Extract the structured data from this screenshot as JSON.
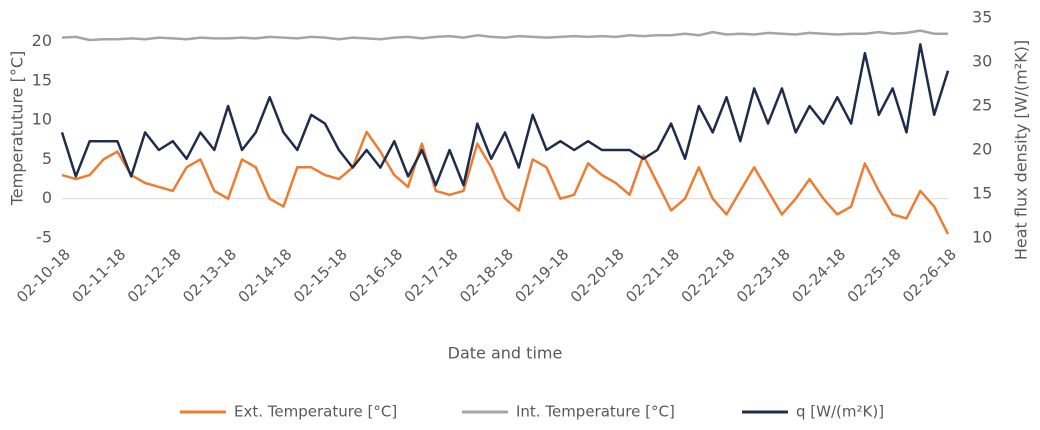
{
  "chart_data": {
    "type": "line",
    "y_label": "Temperatuture [°C]",
    "y2_label": "Heat flux density [W/(m²K)]",
    "x_label": "Date and time",
    "categories": [
      "02-10-18",
      null,
      null,
      null,
      "02-11-18",
      null,
      null,
      null,
      "02-12-18",
      null,
      null,
      null,
      "02-13-18",
      null,
      null,
      null,
      "02-14-18",
      null,
      null,
      null,
      "02-15-18",
      null,
      null,
      null,
      "02-16-18",
      null,
      null,
      null,
      "02-17-18",
      null,
      null,
      null,
      "02-18-18",
      null,
      null,
      null,
      "02-19-18",
      null,
      null,
      null,
      "02-20-18",
      null,
      null,
      null,
      "02-21-18",
      null,
      null,
      null,
      "02-22-18",
      null,
      null,
      null,
      "02-23-18",
      null,
      null,
      null,
      "02-24-18",
      null,
      null,
      null,
      "02-25-18",
      null,
      null,
      null,
      "02-26-18"
    ],
    "series": [
      {
        "name": "Ext. Temperature [°C]",
        "color": "#ed7d31",
        "axis": "y",
        "values": [
          3,
          2.5,
          3,
          5,
          6,
          3,
          2,
          1.5,
          1,
          4,
          5,
          1,
          0,
          5,
          4,
          0,
          -1,
          4,
          4,
          3,
          2.5,
          4,
          8.5,
          6,
          3,
          1.5,
          7,
          1,
          0.5,
          1,
          7,
          4,
          0,
          -1.5,
          5,
          4,
          0,
          0.5,
          4.5,
          3,
          2,
          0.5,
          5.5,
          2,
          -1.5,
          0,
          4,
          0,
          -2,
          1,
          4,
          1,
          -2,
          0,
          2.5,
          0,
          -2,
          -1,
          4.5,
          1,
          -2,
          -2.5,
          1,
          -1,
          -4.5
        ]
      },
      {
        "name": "Int. Temperature [°C]",
        "color": "#a5a5a5",
        "axis": "y",
        "values": [
          20.5,
          20.6,
          20.2,
          20.3,
          20.3,
          20.4,
          20.3,
          20.5,
          20.4,
          20.3,
          20.5,
          20.4,
          20.4,
          20.5,
          20.4,
          20.6,
          20.5,
          20.4,
          20.6,
          20.5,
          20.3,
          20.5,
          20.4,
          20.3,
          20.5,
          20.6,
          20.4,
          20.6,
          20.7,
          20.5,
          20.8,
          20.6,
          20.5,
          20.7,
          20.6,
          20.5,
          20.6,
          20.7,
          20.6,
          20.7,
          20.6,
          20.8,
          20.7,
          20.8,
          20.8,
          21.0,
          20.8,
          21.2,
          20.9,
          21.0,
          20.9,
          21.1,
          21.0,
          20.9,
          21.1,
          21.0,
          20.9,
          21.0,
          21.0,
          21.2,
          21.0,
          21.1,
          21.4,
          21.0,
          21.0
        ]
      },
      {
        "name": "q [W/(m²K)]",
        "color": "#1f2d4d",
        "axis": "y2",
        "values": [
          22,
          17,
          21,
          21,
          21,
          17,
          22,
          20,
          21,
          19,
          22,
          20,
          25,
          20,
          22,
          26,
          22,
          20,
          24,
          23,
          20,
          18,
          20,
          18,
          21,
          17,
          20,
          16,
          20,
          16,
          23,
          19,
          22,
          18,
          24,
          20,
          21,
          20,
          21,
          20,
          20,
          20,
          19,
          20,
          23,
          19,
          25,
          22,
          26,
          21,
          27,
          23,
          27,
          22,
          25,
          23,
          26,
          23,
          31,
          24,
          27,
          22,
          32,
          24,
          29
        ]
      }
    ],
    "ylim": [
      -5,
      23
    ],
    "yticks": [
      -5,
      0,
      5,
      10,
      15,
      20
    ],
    "y2lim": [
      10,
      35
    ],
    "y2ticks": [
      10,
      15,
      20,
      25,
      30,
      35
    ],
    "grid": false
  }
}
